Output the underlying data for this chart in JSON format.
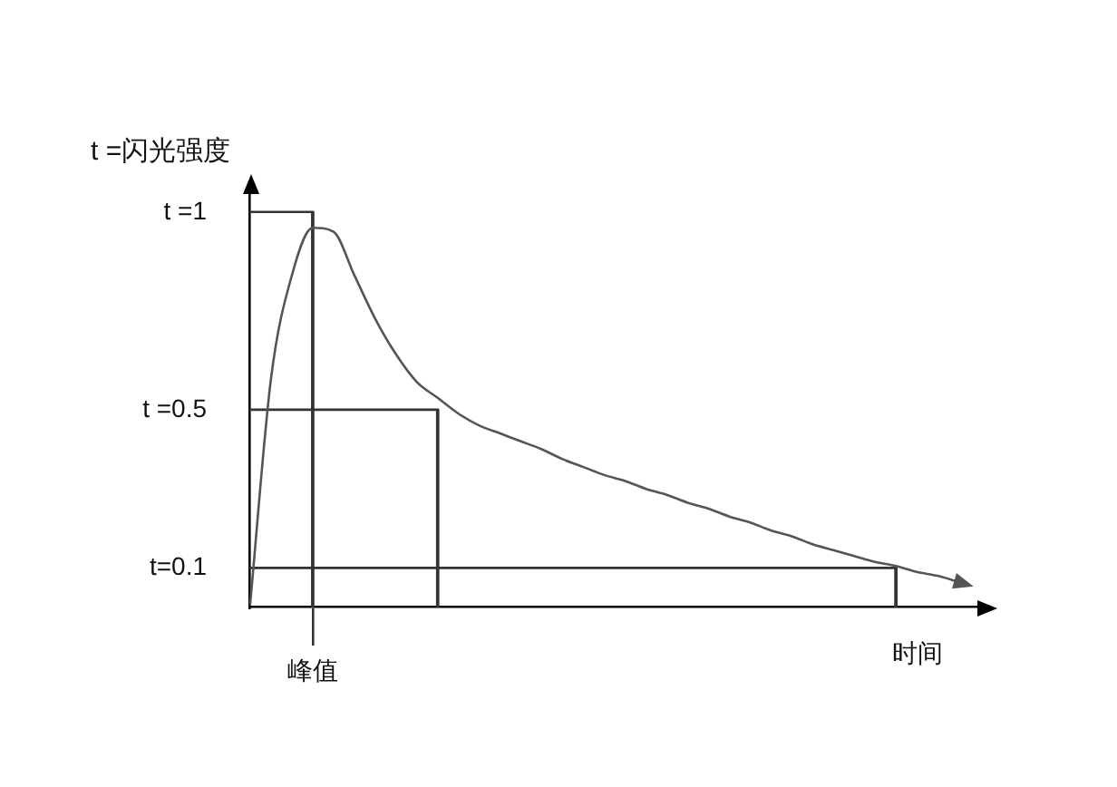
{
  "chart_data": {
    "type": "line",
    "ylabel": "t =闪光强度",
    "xlabel": "时间",
    "categories": [
      null,
      null,
      null,
      "峰值",
      null,
      null,
      null,
      null,
      null,
      null,
      null,
      null,
      null,
      null,
      null,
      null,
      null,
      null,
      null,
      null,
      null,
      null,
      null,
      null,
      null,
      null,
      null,
      null,
      null,
      null,
      null,
      null,
      null,
      null,
      null,
      null
    ],
    "ylim": [
      0,
      1.05
    ],
    "yticks": [
      {
        "value": 0.1,
        "label": "t=0.1"
      },
      {
        "value": 0.5,
        "label": "t =0.5"
      },
      {
        "value": 1,
        "label": "t =1"
      }
    ],
    "legend": false,
    "marker": "none",
    "series": [
      {
        "color": "#555555",
        "values": [
          0.01,
          0.58,
          0.84,
          0.96,
          0.95,
          0.84,
          0.73,
          0.64,
          0.57,
          0.53,
          0.49,
          0.46,
          0.44,
          0.42,
          0.4,
          0.375,
          0.355,
          0.335,
          0.32,
          0.3,
          0.285,
          0.265,
          0.25,
          0.23,
          0.215,
          0.195,
          0.18,
          0.16,
          0.145,
          0.13,
          0.115,
          0.105,
          0.09,
          0.08,
          0.065,
          null
        ]
      },
      {
        "color": "#333333",
        "values": [
          1,
          1,
          1,
          1,
          null,
          null,
          null,
          null,
          null,
          null,
          null,
          null,
          null,
          null,
          null,
          null,
          null,
          null,
          null,
          null,
          null,
          null,
          null,
          null,
          null,
          null,
          null,
          null,
          null,
          null,
          null,
          null,
          null,
          null,
          null,
          null
        ]
      },
      {
        "color": "#333333",
        "values": [
          0.5,
          0.5,
          0.5,
          0.5,
          0.5,
          0.5,
          0.5,
          0.5,
          0.5,
          0.5,
          null,
          null,
          null,
          null,
          null,
          null,
          null,
          null,
          null,
          null,
          null,
          null,
          null,
          null,
          null,
          null,
          null,
          null,
          null,
          null,
          null,
          null,
          null,
          null,
          null,
          null
        ]
      },
      {
        "color": "#333333",
        "values": [
          0.1,
          0.1,
          0.1,
          0.1,
          0.1,
          0.1,
          0.1,
          0.1,
          0.1,
          0.1,
          0.1,
          0.1,
          0.1,
          0.1,
          0.1,
          0.1,
          0.1,
          0.1,
          0.1,
          0.1,
          0.1,
          0.1,
          0.1,
          0.1,
          0.1,
          0.1,
          0.1,
          0.1,
          0.1,
          0.1,
          0.1,
          0.1,
          null,
          null,
          null,
          null
        ]
      },
      {
        "type": "bar",
        "color": "#333333",
        "values": [
          null,
          null,
          null,
          1,
          null,
          null,
          null,
          null,
          null,
          0.5,
          null,
          null,
          null,
          null,
          null,
          null,
          null,
          null,
          null,
          null,
          null,
          null,
          null,
          null,
          null,
          null,
          null,
          null,
          null,
          null,
          null,
          0.1,
          null,
          null,
          null,
          null
        ]
      }
    ]
  }
}
